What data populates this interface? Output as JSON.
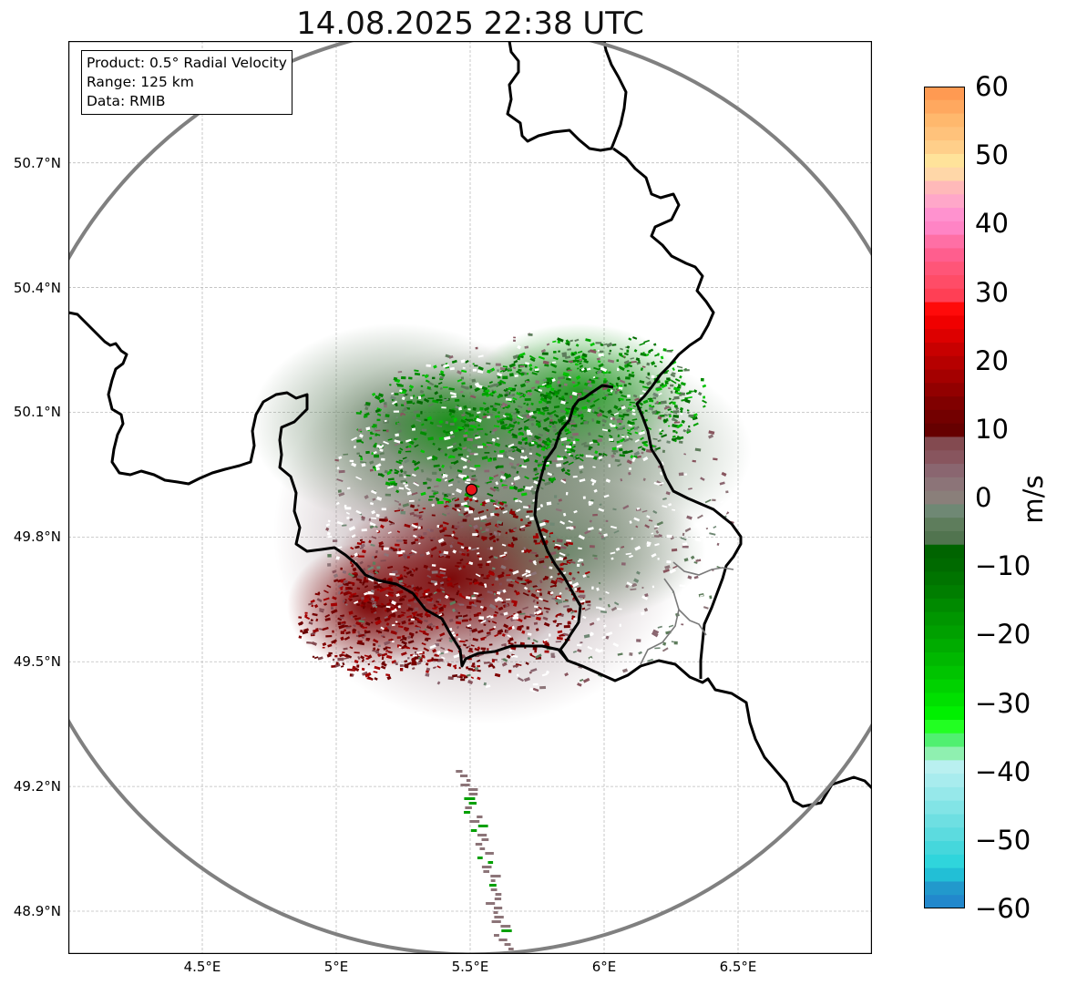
{
  "title": "14.08.2025 22:38 UTC",
  "info_box": {
    "line1": "Product: 0.5° Radial Velocity",
    "line2": "Range: 125 km",
    "line3": "Data: RMIB"
  },
  "map": {
    "extent": {
      "lon_min": 4.0,
      "lon_max": 7.0,
      "lat_min": 48.8,
      "lat_max": 50.99
    },
    "lat_ticks": [
      {
        "value": 50.7,
        "label": "50.7°N"
      },
      {
        "value": 50.4,
        "label": "50.4°N"
      },
      {
        "value": 50.1,
        "label": "50.1°N"
      },
      {
        "value": 49.8,
        "label": "49.8°N"
      },
      {
        "value": 49.5,
        "label": "49.5°N"
      },
      {
        "value": 49.2,
        "label": "49.2°N"
      },
      {
        "value": 48.9,
        "label": "48.9°N"
      }
    ],
    "lon_ticks": [
      {
        "value": 4.5,
        "label": "4.5°E"
      },
      {
        "value": 5.0,
        "label": "5°E"
      },
      {
        "value": 5.5,
        "label": "5.5°E"
      },
      {
        "value": 6.0,
        "label": "6°E"
      },
      {
        "value": 6.5,
        "label": "6.5°E"
      }
    ],
    "gridlines": true,
    "radar_site": {
      "lon": 5.505,
      "lat": 49.914,
      "color": "#e8141a"
    },
    "range_ring_km": 125,
    "range_ring_color": "#808080",
    "border_color": "#000000",
    "admin_border_color": "#7a7a7a"
  },
  "colorbar": {
    "unit": "m/s",
    "min": -60,
    "max": 60,
    "ticks": [
      {
        "value": 60,
        "label": "60"
      },
      {
        "value": 50,
        "label": "50"
      },
      {
        "value": 40,
        "label": "40"
      },
      {
        "value": 30,
        "label": "30"
      },
      {
        "value": 20,
        "label": "20"
      },
      {
        "value": 10,
        "label": "10"
      },
      {
        "value": 0,
        "label": "0"
      },
      {
        "value": -10,
        "label": "−10"
      },
      {
        "value": -20,
        "label": "−20"
      },
      {
        "value": -30,
        "label": "−30"
      },
      {
        "value": -40,
        "label": "−40"
      },
      {
        "value": -50,
        "label": "−50"
      },
      {
        "value": -60,
        "label": "−60"
      }
    ],
    "colors_top_to_bottom": [
      "#ff9a52",
      "#ffa85f",
      "#ffb86d",
      "#ffc27b",
      "#ffcf8a",
      "#ffe39a",
      "#ffd7a8",
      "#ffb9b9",
      "#ffa7c9",
      "#ff92cf",
      "#ff84c5",
      "#ff6fa5",
      "#ff5e8e",
      "#ff5578",
      "#ff4c67",
      "#ff3f55",
      "#ff0a0a",
      "#f00000",
      "#dd0000",
      "#c80000",
      "#b60000",
      "#a40000",
      "#920000",
      "#800000",
      "#730000",
      "#660000",
      "#834a50",
      "#88555e",
      "#8a6670",
      "#8c7478",
      "#8a7f7a",
      "#6f8874",
      "#5e7d5c",
      "#51744f",
      "#006400",
      "#006a00",
      "#007400",
      "#007e00",
      "#008a00",
      "#009600",
      "#00a000",
      "#00ac00",
      "#00b800",
      "#00c400",
      "#00d200",
      "#00e000",
      "#00f000",
      "#22ff22",
      "#50f070",
      "#8ff0b0",
      "#b9f0f0",
      "#a8ecee",
      "#96e8ea",
      "#82e4e6",
      "#6edfe2",
      "#5cdbdf",
      "#45d7dc",
      "#2fd5dc",
      "#22bfd6",
      "#2299cc",
      "#2288cc"
    ]
  }
}
